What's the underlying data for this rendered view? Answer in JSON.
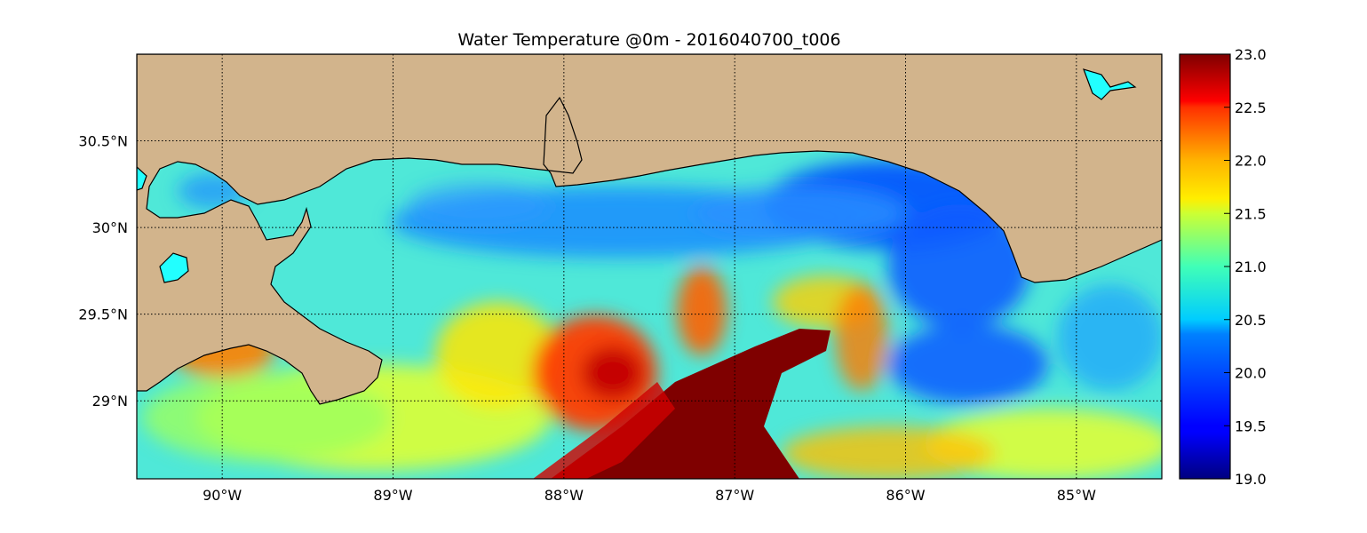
{
  "title": "Water Temperature @0m - 2016040700_t006",
  "map": {
    "lon_range": [
      -90.5,
      -84.5
    ],
    "lat_range": [
      28.55,
      31.0
    ],
    "land_color": "#d2b48c",
    "lon_ticks": [
      {
        "value": -90,
        "label": "90°W"
      },
      {
        "value": -89,
        "label": "89°W"
      },
      {
        "value": -88,
        "label": "88°W"
      },
      {
        "value": -87,
        "label": "87°W"
      },
      {
        "value": -86,
        "label": "86°W"
      },
      {
        "value": -85,
        "label": "85°W"
      }
    ],
    "lat_ticks": [
      {
        "value": 30.5,
        "label": "30.5°N"
      },
      {
        "value": 30.0,
        "label": "30°N"
      },
      {
        "value": 29.5,
        "label": "29.5°N"
      },
      {
        "value": 29.0,
        "label": "29°N"
      }
    ],
    "grid": "dotted"
  },
  "colorbar": {
    "colormap": "jet",
    "range": [
      19.0,
      23.0
    ],
    "ticks": [
      "23.0",
      "22.5",
      "22.0",
      "21.5",
      "21.0",
      "20.5",
      "20.0",
      "19.5",
      "19.0"
    ],
    "tick_values": [
      23.0,
      22.5,
      22.0,
      21.5,
      21.0,
      20.5,
      20.0,
      19.5,
      19.0
    ]
  }
}
